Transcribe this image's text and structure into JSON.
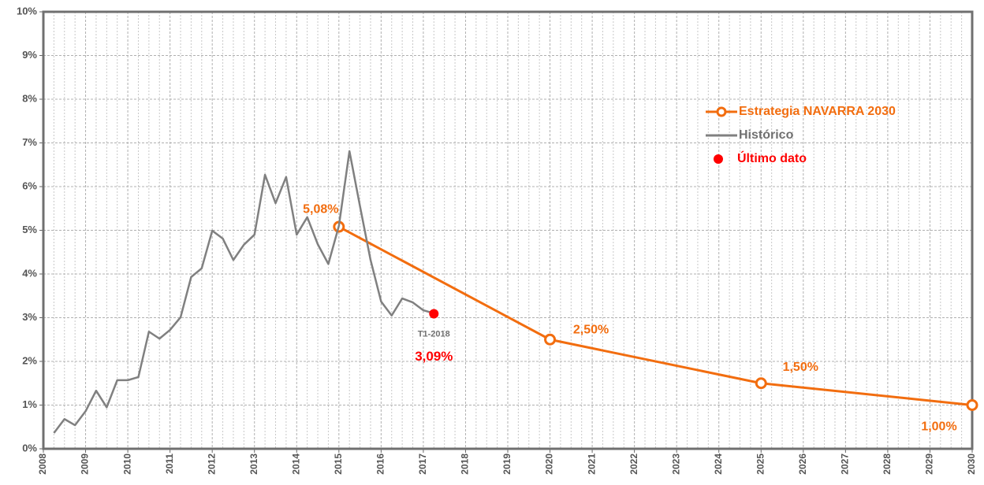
{
  "chart_data": {
    "type": "line",
    "xlim": [
      2008,
      2030
    ],
    "xticks": [
      2008,
      2009,
      2010,
      2011,
      2012,
      2013,
      2014,
      2015,
      2016,
      2017,
      2018,
      2019,
      2020,
      2021,
      2022,
      2023,
      2024,
      2025,
      2026,
      2027,
      2028,
      2029,
      2030
    ],
    "ylim": [
      0,
      10
    ],
    "yticks": [
      {
        "value": 0,
        "label": "0%"
      },
      {
        "value": 1,
        "label": "1%"
      },
      {
        "value": 2,
        "label": "2%"
      },
      {
        "value": 3,
        "label": "3%"
      },
      {
        "value": 4,
        "label": "4%"
      },
      {
        "value": 5,
        "label": "5%"
      },
      {
        "value": 6,
        "label": "6%"
      },
      {
        "value": 7,
        "label": "7%"
      },
      {
        "value": 8,
        "label": "8%"
      },
      {
        "value": 9,
        "label": "9%"
      },
      {
        "value": 10,
        "label": "10%"
      }
    ],
    "grid": true,
    "legend": "upper right",
    "series": [
      {
        "name": "Estrategia NAVARRA 2030",
        "color": "#f26d0f",
        "marker": "open-circle",
        "x": [
          2015,
          2020,
          2025,
          2030
        ],
        "values": [
          5.08,
          2.5,
          1.5,
          1.0
        ],
        "value_labels": [
          "5,08%",
          "2,50%",
          "1,50%",
          "1,00%"
        ]
      },
      {
        "name": "Histórico",
        "color": "#808080",
        "marker": "none",
        "x": [
          2008.25,
          2008.5,
          2008.75,
          2009,
          2009.25,
          2009.5,
          2009.75,
          2010,
          2010.25,
          2010.5,
          2010.75,
          2011,
          2011.25,
          2011.5,
          2011.75,
          2012,
          2012.25,
          2012.5,
          2012.75,
          2013,
          2013.25,
          2013.5,
          2013.75,
          2014,
          2014.25,
          2014.5,
          2014.75,
          2015,
          2015.25,
          2015.5,
          2015.75,
          2016,
          2016.25,
          2016.5,
          2016.75,
          2017,
          2017.25
        ],
        "values": [
          0.36,
          0.68,
          0.54,
          0.86,
          1.33,
          0.95,
          1.57,
          1.57,
          1.64,
          2.68,
          2.52,
          2.72,
          3.01,
          3.93,
          4.13,
          4.99,
          4.81,
          4.32,
          4.67,
          4.9,
          6.27,
          5.62,
          6.22,
          4.9,
          5.3,
          4.68,
          4.23,
          5.1,
          6.81,
          5.55,
          4.32,
          3.37,
          3.05,
          3.44,
          3.35,
          3.17,
          3.1
        ]
      },
      {
        "name": "Último dato",
        "color": "#ff0000",
        "marker": "dot",
        "x": [
          2017.25
        ],
        "values": [
          3.09
        ],
        "value_labels": [
          "3,09%"
        ]
      }
    ],
    "annotations": [
      {
        "text": "T1-2018",
        "x": 2017.25,
        "y": 3.09
      }
    ]
  }
}
